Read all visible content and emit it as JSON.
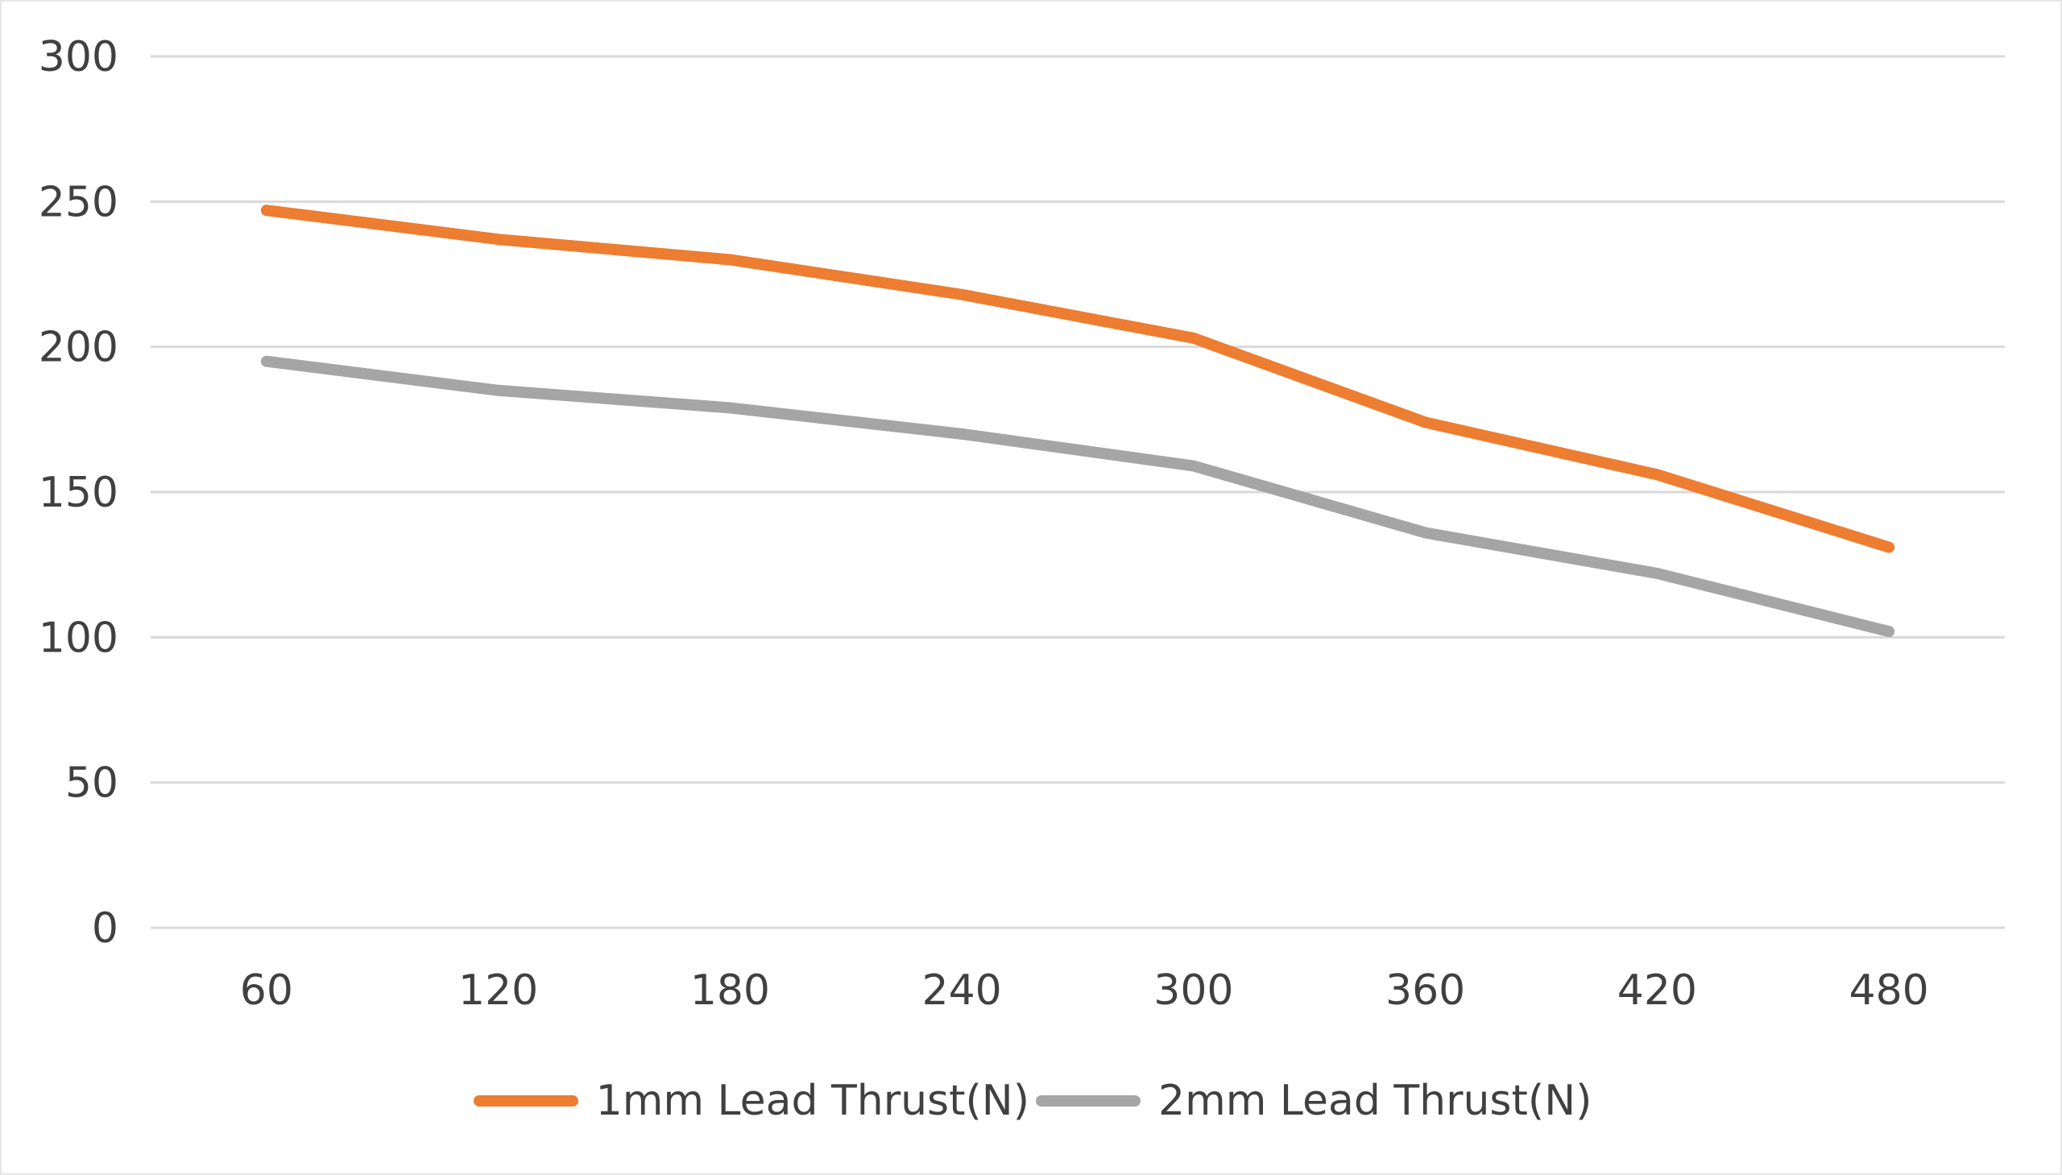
{
  "chart_data": {
    "type": "line",
    "title": "",
    "xlabel": "",
    "ylabel": "",
    "categories": [
      "60",
      "120",
      "180",
      "240",
      "300",
      "360",
      "420",
      "480"
    ],
    "ylim": [
      0,
      300
    ],
    "yticks": [
      0,
      50,
      100,
      150,
      200,
      250,
      300
    ],
    "grid": true,
    "legend_position": "bottom",
    "series": [
      {
        "name": "1mm Lead Thrust(N)",
        "color": "#ed7d31",
        "values": [
          247,
          237,
          230,
          218,
          203,
          174,
          156,
          131
        ]
      },
      {
        "name": "2mm Lead Thrust(N)",
        "color": "#a5a5a5",
        "values": [
          195,
          185,
          179,
          170,
          159,
          136,
          122,
          102
        ]
      }
    ]
  }
}
